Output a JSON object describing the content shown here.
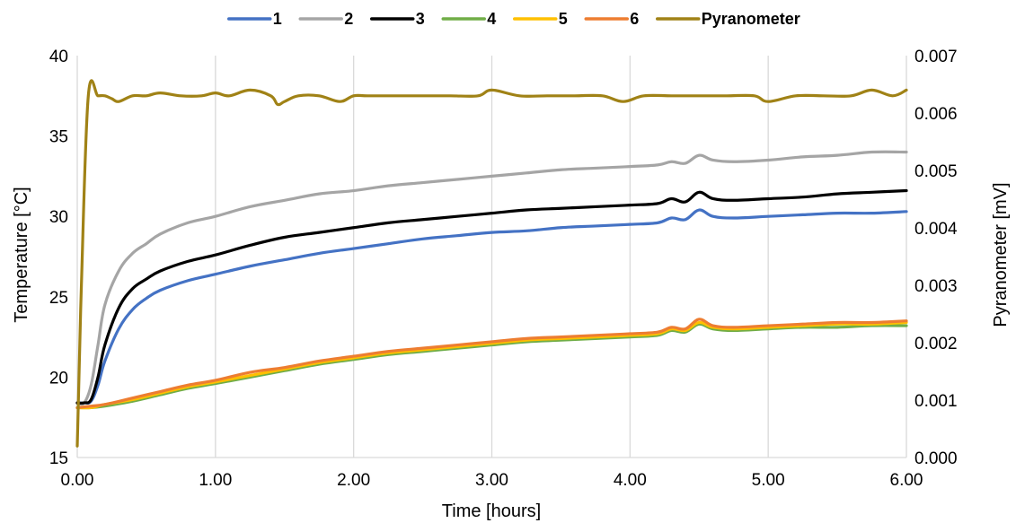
{
  "chart_data": {
    "type": "line",
    "xlabel": "Time [hours]",
    "ylabel": "Temperature [°C]",
    "y2label": "Pyranometer [mV]",
    "xlim": [
      0,
      6
    ],
    "ylim": [
      15,
      40
    ],
    "y2lim": [
      0,
      0.007
    ],
    "xticks": [
      "0.00",
      "1.00",
      "2.00",
      "3.00",
      "4.00",
      "5.00",
      "6.00"
    ],
    "yticks": [
      "15",
      "20",
      "25",
      "30",
      "35",
      "40"
    ],
    "y2ticks": [
      "0.000",
      "0.001",
      "0.002",
      "0.003",
      "0.004",
      "0.005",
      "0.006",
      "0.007"
    ],
    "grid": "vertical",
    "legend_position": "top",
    "series": [
      {
        "name": "1",
        "color": "#4472C4",
        "axis": "left",
        "x": [
          0,
          0.05,
          0.1,
          0.15,
          0.2,
          0.3,
          0.4,
          0.5,
          0.6,
          0.8,
          1.0,
          1.25,
          1.5,
          1.75,
          2.0,
          2.25,
          2.5,
          2.75,
          3.0,
          3.25,
          3.5,
          3.75,
          4.0,
          4.2,
          4.3,
          4.4,
          4.5,
          4.6,
          4.75,
          5.0,
          5.25,
          5.5,
          5.75,
          6.0
        ],
        "y": [
          18.4,
          18.4,
          18.5,
          19.5,
          21.0,
          23.0,
          24.2,
          24.9,
          25.4,
          26.0,
          26.4,
          26.9,
          27.3,
          27.7,
          28.0,
          28.3,
          28.6,
          28.8,
          29.0,
          29.1,
          29.3,
          29.4,
          29.5,
          29.6,
          29.9,
          29.8,
          30.4,
          30.0,
          29.9,
          30.0,
          30.1,
          30.2,
          30.2,
          30.3
        ]
      },
      {
        "name": "2",
        "color": "#A5A5A5",
        "axis": "left",
        "x": [
          0,
          0.05,
          0.1,
          0.15,
          0.2,
          0.3,
          0.4,
          0.5,
          0.6,
          0.8,
          1.0,
          1.25,
          1.5,
          1.75,
          2.0,
          2.25,
          2.5,
          2.75,
          3.0,
          3.25,
          3.5,
          3.75,
          4.0,
          4.2,
          4.3,
          4.4,
          4.5,
          4.6,
          4.75,
          5.0,
          5.25,
          5.5,
          5.75,
          6.0
        ],
        "y": [
          18.4,
          18.4,
          19.5,
          22.0,
          24.5,
          26.6,
          27.7,
          28.3,
          28.9,
          29.6,
          30.0,
          30.6,
          31.0,
          31.4,
          31.6,
          31.9,
          32.1,
          32.3,
          32.5,
          32.7,
          32.9,
          33.0,
          33.1,
          33.2,
          33.4,
          33.3,
          33.8,
          33.5,
          33.4,
          33.5,
          33.7,
          33.8,
          34.0,
          34.0
        ]
      },
      {
        "name": "3",
        "color": "#000000",
        "axis": "left",
        "x": [
          0,
          0.05,
          0.1,
          0.15,
          0.2,
          0.3,
          0.4,
          0.5,
          0.6,
          0.8,
          1.0,
          1.25,
          1.5,
          1.75,
          2.0,
          2.25,
          2.5,
          2.75,
          3.0,
          3.25,
          3.5,
          3.75,
          4.0,
          4.2,
          4.3,
          4.4,
          4.5,
          4.6,
          4.75,
          5.0,
          5.25,
          5.5,
          5.75,
          6.0
        ],
        "y": [
          18.4,
          18.4,
          18.6,
          20.0,
          22.0,
          24.3,
          25.5,
          26.1,
          26.6,
          27.2,
          27.6,
          28.2,
          28.7,
          29.0,
          29.3,
          29.6,
          29.8,
          30.0,
          30.2,
          30.4,
          30.5,
          30.6,
          30.7,
          30.8,
          31.1,
          30.9,
          31.5,
          31.1,
          31.0,
          31.1,
          31.2,
          31.4,
          31.5,
          31.6
        ]
      },
      {
        "name": "4",
        "color": "#70AD47",
        "axis": "left",
        "x": [
          0,
          0.1,
          0.2,
          0.4,
          0.6,
          0.8,
          1.0,
          1.25,
          1.5,
          1.75,
          2.0,
          2.25,
          2.5,
          2.75,
          3.0,
          3.25,
          3.5,
          3.75,
          4.0,
          4.2,
          4.3,
          4.4,
          4.5,
          4.6,
          4.75,
          5.0,
          5.25,
          5.5,
          5.75,
          6.0
        ],
        "y": [
          18.1,
          18.1,
          18.2,
          18.5,
          18.9,
          19.3,
          19.6,
          20.0,
          20.4,
          20.8,
          21.1,
          21.4,
          21.6,
          21.8,
          22.0,
          22.2,
          22.3,
          22.4,
          22.5,
          22.6,
          22.9,
          22.8,
          23.3,
          23.0,
          22.9,
          23.0,
          23.1,
          23.1,
          23.2,
          23.2
        ]
      },
      {
        "name": "5",
        "color": "#FFC000",
        "axis": "left",
        "x": [
          0,
          0.1,
          0.2,
          0.4,
          0.6,
          0.8,
          1.0,
          1.25,
          1.5,
          1.75,
          2.0,
          2.25,
          2.5,
          2.75,
          3.0,
          3.25,
          3.5,
          3.75,
          4.0,
          4.2,
          4.3,
          4.4,
          4.5,
          4.6,
          4.75,
          5.0,
          5.25,
          5.5,
          5.75,
          6.0
        ],
        "y": [
          18.1,
          18.1,
          18.3,
          18.6,
          19.0,
          19.4,
          19.7,
          20.1,
          20.5,
          20.9,
          21.2,
          21.5,
          21.7,
          21.9,
          22.1,
          22.3,
          22.4,
          22.5,
          22.6,
          22.7,
          23.0,
          22.9,
          23.4,
          23.1,
          23.0,
          23.1,
          23.2,
          23.3,
          23.3,
          23.4
        ]
      },
      {
        "name": "6",
        "color": "#ED7D31",
        "axis": "left",
        "x": [
          0,
          0.1,
          0.2,
          0.4,
          0.6,
          0.8,
          1.0,
          1.25,
          1.5,
          1.75,
          2.0,
          2.25,
          2.5,
          2.75,
          3.0,
          3.25,
          3.5,
          3.75,
          4.0,
          4.2,
          4.3,
          4.4,
          4.5,
          4.6,
          4.75,
          5.0,
          5.25,
          5.5,
          5.75,
          6.0
        ],
        "y": [
          18.1,
          18.2,
          18.3,
          18.7,
          19.1,
          19.5,
          19.8,
          20.3,
          20.6,
          21.0,
          21.3,
          21.6,
          21.8,
          22.0,
          22.2,
          22.4,
          22.5,
          22.6,
          22.7,
          22.8,
          23.1,
          23.0,
          23.6,
          23.2,
          23.1,
          23.2,
          23.3,
          23.4,
          23.4,
          23.5
        ]
      },
      {
        "name": "Pyranometer",
        "color": "#A08216",
        "axis": "right",
        "x": [
          0,
          0.03,
          0.08,
          0.15,
          0.2,
          0.25,
          0.3,
          0.4,
          0.5,
          0.6,
          0.75,
          0.9,
          1.0,
          1.1,
          1.25,
          1.4,
          1.45,
          1.5,
          1.6,
          1.75,
          1.9,
          2.0,
          2.1,
          2.3,
          2.5,
          2.7,
          2.9,
          3.0,
          3.2,
          3.4,
          3.6,
          3.8,
          3.95,
          4.1,
          4.3,
          4.5,
          4.7,
          4.9,
          5.0,
          5.2,
          5.4,
          5.6,
          5.75,
          5.9,
          6.0
        ],
        "y": [
          0.0002,
          0.003,
          0.0063,
          0.0063,
          0.0063,
          0.00625,
          0.0062,
          0.0063,
          0.0063,
          0.00635,
          0.0063,
          0.0063,
          0.00635,
          0.0063,
          0.0064,
          0.0063,
          0.00615,
          0.0062,
          0.0063,
          0.0063,
          0.0062,
          0.0063,
          0.0063,
          0.0063,
          0.0063,
          0.0063,
          0.0063,
          0.0064,
          0.0063,
          0.0063,
          0.0063,
          0.0063,
          0.0062,
          0.0063,
          0.0063,
          0.0063,
          0.0063,
          0.0063,
          0.0062,
          0.0063,
          0.0063,
          0.0063,
          0.0064,
          0.0063,
          0.0064
        ]
      }
    ]
  }
}
